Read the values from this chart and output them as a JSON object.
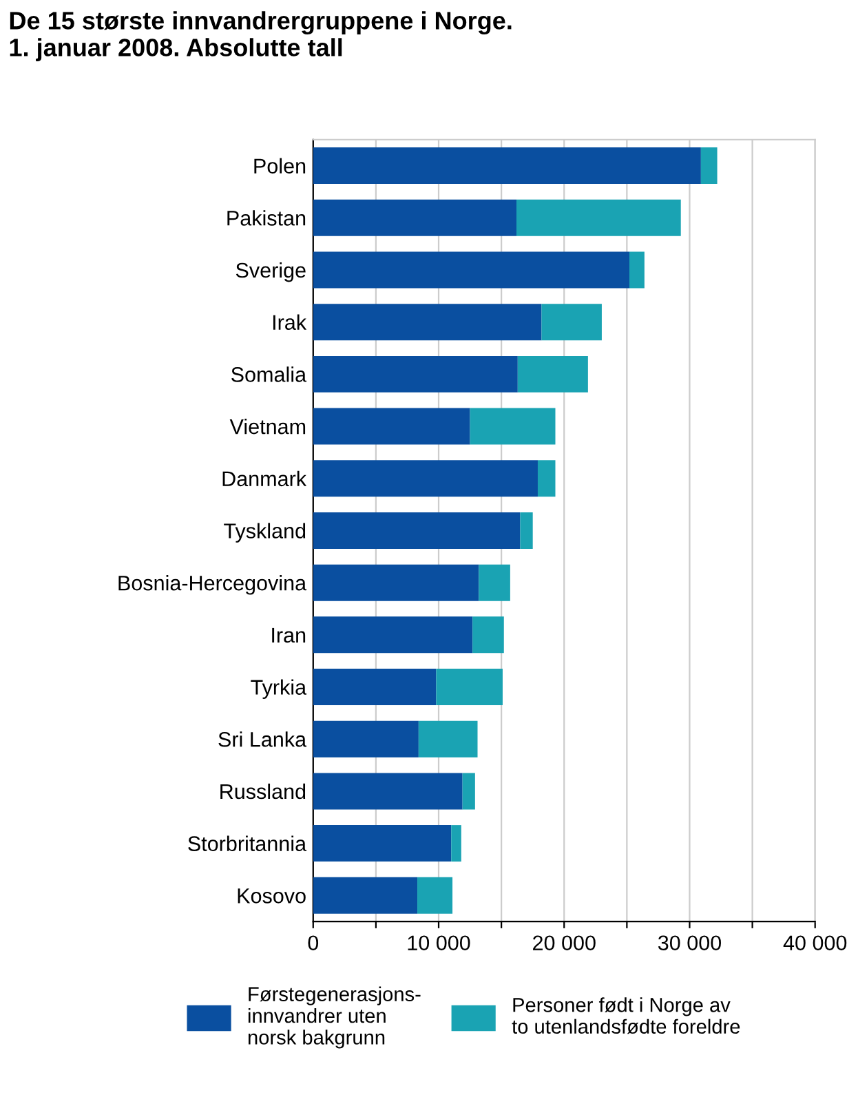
{
  "chart_data": {
    "type": "bar",
    "orientation": "horizontal",
    "stacked": true,
    "title": "De 15 største innvandrergruppene i Norge.\n1. januar 2008. Absolutte tall",
    "categories": [
      "Polen",
      "Pakistan",
      "Sverige",
      "Irak",
      "Somalia",
      "Vietnam",
      "Danmark",
      "Tyskland",
      "Bosnia-Hercegovina",
      "Iran",
      "Tyrkia",
      "Sri Lanka",
      "Russland",
      "Storbritannia",
      "Kosovo"
    ],
    "series": [
      {
        "name": "Førstegenerasjons-\ninnvandrer uten\nnorsk bakgrunn",
        "color": "#0a4fa0",
        "values": [
          30900,
          16200,
          25200,
          18200,
          16300,
          12500,
          17900,
          16500,
          13200,
          12700,
          9800,
          8400,
          11900,
          11000,
          8300
        ]
      },
      {
        "name": "Personer født i Norge av\nto utenlandsfødte foreldre",
        "color": "#1aa3b3",
        "values": [
          1300,
          13100,
          1200,
          4800,
          5600,
          6800,
          1400,
          1000,
          2500,
          2500,
          5300,
          4700,
          1000,
          800,
          2800
        ]
      }
    ],
    "xlim": [
      0,
      40000
    ],
    "xticks": [
      0,
      {
        "value": 5000,
        "label": null
      },
      {
        "value": 10000,
        "label": "10 000"
      },
      {
        "value": 15000,
        "label": null
      },
      {
        "value": 20000,
        "label": "20 000"
      },
      {
        "value": 25000,
        "label": null
      },
      {
        "value": 30000,
        "label": "30 000"
      },
      {
        "value": 35000,
        "label": null
      },
      {
        "value": 40000,
        "label": "40 000"
      }
    ],
    "grid": "x",
    "legend": "bottom"
  }
}
